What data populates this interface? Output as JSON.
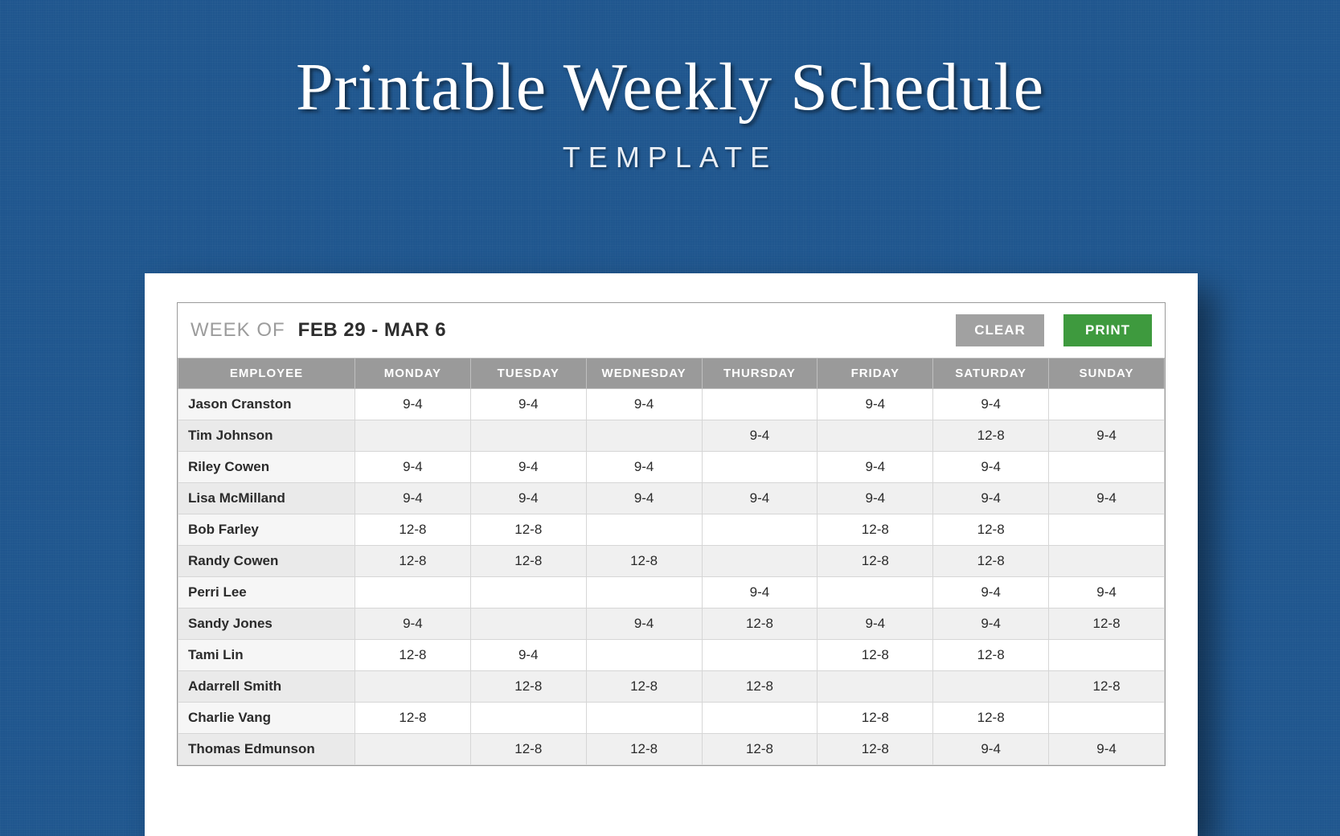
{
  "hero": {
    "title": "Printable Weekly Schedule",
    "subtitle": "TEMPLATE"
  },
  "colors": {
    "page_background": "#1f568e",
    "sheet_background": "#ffffff",
    "header_row_bg": "#9a9a9a",
    "header_row_text": "#ffffff",
    "alt_row_bg": "#f0f0f0",
    "btn_clear_bg": "#a1a1a1",
    "btn_print_bg": "#3e9a3e",
    "week_label_color": "#9c9c9c",
    "text_color": "#2b2b2b"
  },
  "header": {
    "week_of_label": "WEEK OF",
    "week_of_value": "FEB 29 - MAR 6",
    "clear_label": "CLEAR",
    "print_label": "PRINT"
  },
  "table": {
    "columns": [
      "EMPLOYEE",
      "MONDAY",
      "TUESDAY",
      "WEDNESDAY",
      "THURSDAY",
      "FRIDAY",
      "SATURDAY",
      "SUNDAY"
    ],
    "rows": [
      {
        "employee": "Jason Cranston",
        "shifts": [
          "9-4",
          "9-4",
          "9-4",
          "",
          "9-4",
          "9-4",
          ""
        ]
      },
      {
        "employee": "Tim Johnson",
        "shifts": [
          "",
          "",
          "",
          "9-4",
          "",
          "12-8",
          "9-4"
        ]
      },
      {
        "employee": "Riley Cowen",
        "shifts": [
          "9-4",
          "9-4",
          "9-4",
          "",
          "9-4",
          "9-4",
          ""
        ]
      },
      {
        "employee": "Lisa McMilland",
        "shifts": [
          "9-4",
          "9-4",
          "9-4",
          "9-4",
          "9-4",
          "9-4",
          "9-4"
        ]
      },
      {
        "employee": "Bob Farley",
        "shifts": [
          "12-8",
          "12-8",
          "",
          "",
          "12-8",
          "12-8",
          ""
        ]
      },
      {
        "employee": "Randy Cowen",
        "shifts": [
          "12-8",
          "12-8",
          "12-8",
          "",
          "12-8",
          "12-8",
          ""
        ]
      },
      {
        "employee": "Perri Lee",
        "shifts": [
          "",
          "",
          "",
          "9-4",
          "",
          "9-4",
          "9-4"
        ]
      },
      {
        "employee": "Sandy Jones",
        "shifts": [
          "9-4",
          "",
          "9-4",
          "12-8",
          "9-4",
          "9-4",
          "12-8"
        ]
      },
      {
        "employee": "Tami Lin",
        "shifts": [
          "12-8",
          "9-4",
          "",
          "",
          "12-8",
          "12-8",
          ""
        ]
      },
      {
        "employee": "Adarrell Smith",
        "shifts": [
          "",
          "12-8",
          "12-8",
          "12-8",
          "",
          "",
          "12-8"
        ]
      },
      {
        "employee": "Charlie Vang",
        "shifts": [
          "12-8",
          "",
          "",
          "",
          "12-8",
          "12-8",
          ""
        ]
      },
      {
        "employee": "Thomas Edmunson",
        "shifts": [
          "",
          "12-8",
          "12-8",
          "12-8",
          "12-8",
          "9-4",
          "9-4"
        ]
      }
    ]
  }
}
